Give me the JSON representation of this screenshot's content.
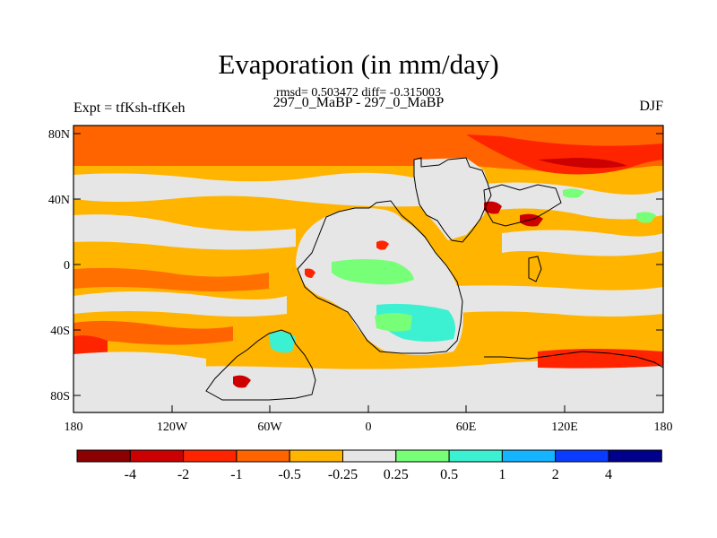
{
  "title": "Evaporation (in mm/day)",
  "stats": "rmsd= 0.503472 diff= -0.315003",
  "subtitle": "297_0_MaBP - 297_0_MaBP",
  "expt": "Expt = tfKsh-tfKeh",
  "season": "DJF",
  "lat_labels": [
    "80N",
    "40N",
    "0",
    "40S",
    "80S"
  ],
  "lon_labels": [
    "180",
    "120W",
    "60W",
    "0",
    "60E",
    "120E",
    "180"
  ],
  "colorbar": {
    "colors": [
      "#8b0000",
      "#cc0000",
      "#ff2400",
      "#ff6400",
      "#ffb400",
      "#e6e6e6",
      "#78ff78",
      "#3cf0d2",
      "#14b4ff",
      "#0a3cff",
      "#00008c"
    ],
    "labels": [
      "-4",
      "-2",
      "-1",
      "-0.5",
      "-0.25",
      "0.25",
      "0.5",
      "1",
      "2",
      "4"
    ]
  }
}
